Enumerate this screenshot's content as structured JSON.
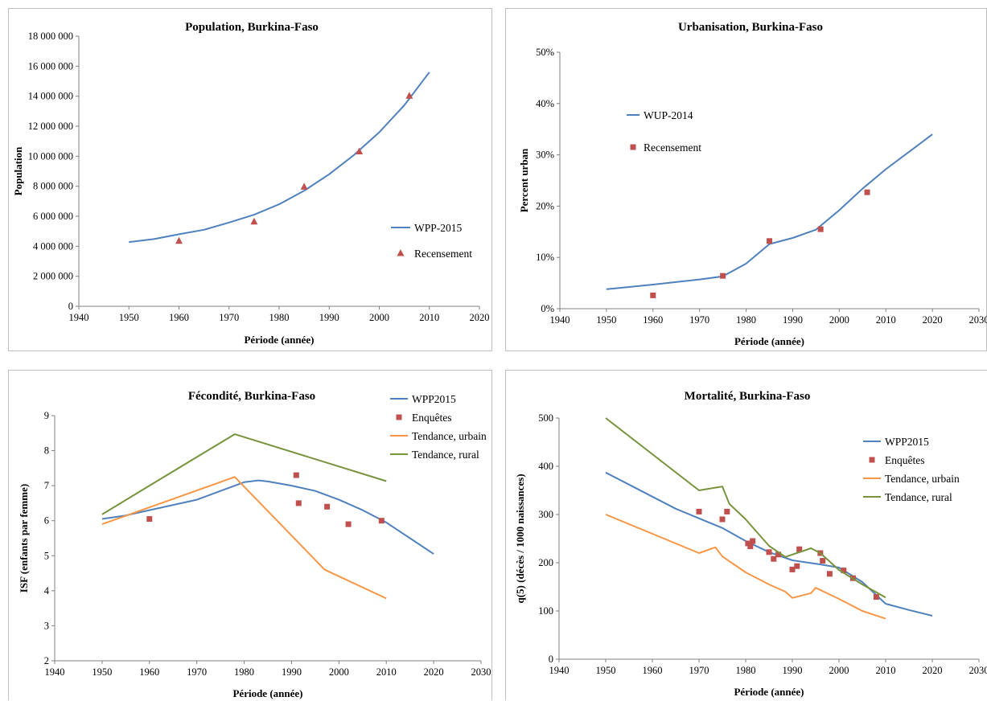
{
  "colors": {
    "wpp": "#4f81bd",
    "obs": "#c0504d",
    "urban": "#f79646",
    "rural": "#77933c",
    "axis": "#808080"
  },
  "chart_data": [
    {
      "type": "line",
      "title": "Population, Burkina-Faso",
      "xlabel": "Période (année)",
      "ylabel": "Population",
      "xlim": [
        1940,
        2020
      ],
      "ylim": [
        0,
        18000000
      ],
      "xticks": [
        1940,
        1950,
        1960,
        1970,
        1980,
        1990,
        2000,
        2010,
        2020
      ],
      "xtick_labels": [
        "1940",
        "1950",
        "1960",
        "1970",
        "1980",
        "1990",
        "2000",
        "2010",
        "2020"
      ],
      "yticks": [
        0,
        2000000,
        4000000,
        6000000,
        8000000,
        10000000,
        12000000,
        14000000,
        16000000,
        18000000
      ],
      "ytick_labels": [
        "0",
        "2 000 000",
        "4 000 000",
        "6 000 000",
        "8 000 000",
        "10 000 000",
        "12 000 000",
        "14 000 000",
        "16 000 000",
        "18 000 000"
      ],
      "legend_position": "lower-right",
      "series": [
        {
          "name": "WPP-2015",
          "style": "line",
          "color_key": "wpp",
          "x": [
            1950,
            1955,
            1960,
            1965,
            1970,
            1975,
            1980,
            1985,
            1990,
            1995,
            2000,
            2005,
            2010
          ],
          "y": [
            4280000,
            4480000,
            4800000,
            5100000,
            5580000,
            6100000,
            6800000,
            7700000,
            8800000,
            10100000,
            11600000,
            13400000,
            15600000
          ]
        },
        {
          "name": "Recensement",
          "style": "marker",
          "marker": "triangle",
          "color_key": "obs",
          "x": [
            1960,
            1975,
            1985,
            1996,
            2006
          ],
          "y": [
            4350000,
            5640000,
            7960000,
            10310000,
            14020000
          ]
        }
      ]
    },
    {
      "type": "line",
      "title": "Urbanisation, Burkina-Faso",
      "xlabel": "Période (année)",
      "ylabel": "Percent urban",
      "xlim": [
        1940,
        2030
      ],
      "ylim": [
        0,
        50
      ],
      "xticks": [
        1940,
        1950,
        1960,
        1970,
        1980,
        1990,
        2000,
        2010,
        2020,
        2030
      ],
      "xtick_labels": [
        "1940",
        "1950",
        "1960",
        "1970",
        "1980",
        "1990",
        "2000",
        "2010",
        "2020",
        "2030"
      ],
      "yticks": [
        0,
        10,
        20,
        30,
        40,
        50
      ],
      "ytick_labels": [
        "0%",
        "10%",
        "20%",
        "30%",
        "40%",
        "50%"
      ],
      "legend_position": "top-left",
      "series": [
        {
          "name": "WUP-2014",
          "style": "line",
          "color_key": "wpp",
          "x": [
            1950,
            1960,
            1970,
            1975,
            1980,
            1985,
            1990,
            1995,
            2000,
            2005,
            2010,
            2015,
            2020
          ],
          "y": [
            3.8,
            4.7,
            5.7,
            6.3,
            8.8,
            12.6,
            13.8,
            15.4,
            19.2,
            23.4,
            27.2,
            30.6,
            34.0
          ]
        },
        {
          "name": "Recensement",
          "style": "marker",
          "marker": "square",
          "color_key": "obs",
          "x": [
            1960,
            1975,
            1985,
            1996,
            2006
          ],
          "y": [
            2.6,
            6.4,
            13.2,
            15.5,
            22.7
          ]
        }
      ]
    },
    {
      "type": "line",
      "title": "Fécondité, Burkina-Faso",
      "xlabel": "Période (année)",
      "ylabel": "ISF (enfants par femme)",
      "xlim": [
        1940,
        2030
      ],
      "ylim": [
        2,
        9
      ],
      "xticks": [
        1940,
        1950,
        1960,
        1970,
        1980,
        1990,
        2000,
        2010,
        2020,
        2030
      ],
      "xtick_labels": [
        "1940",
        "1950",
        "1960",
        "1970",
        "1980",
        "1990",
        "2000",
        "2010",
        "2020",
        "2030"
      ],
      "yticks": [
        2,
        3,
        4,
        5,
        6,
        7,
        8,
        9
      ],
      "ytick_labels": [
        "2",
        "3",
        "4",
        "5",
        "6",
        "7",
        "8",
        "9"
      ],
      "legend_position": "top-right",
      "series": [
        {
          "name": "WPP2015",
          "style": "line",
          "color_key": "wpp",
          "x": [
            1950,
            1955,
            1960,
            1965,
            1970,
            1975,
            1980,
            1983,
            1985,
            1990,
            1995,
            2000,
            2005,
            2010,
            2015,
            2020
          ],
          "y": [
            6.05,
            6.15,
            6.3,
            6.45,
            6.6,
            6.85,
            7.1,
            7.15,
            7.12,
            7.0,
            6.85,
            6.6,
            6.3,
            5.95,
            5.5,
            5.05
          ]
        },
        {
          "name": "Enquêtes",
          "style": "marker",
          "marker": "square",
          "color_key": "obs",
          "x": [
            1960,
            1991,
            1991.5,
            1997.5,
            2002,
            2009
          ],
          "y": [
            6.05,
            7.3,
            6.5,
            6.4,
            5.9,
            6.0
          ]
        },
        {
          "name": "Tendance, urbain",
          "style": "line",
          "color_key": "urban",
          "x": [
            1950,
            1978,
            1997,
            2010
          ],
          "y": [
            5.9,
            7.25,
            4.6,
            3.78
          ]
        },
        {
          "name": "Tendance, rural",
          "style": "line",
          "color_key": "rural",
          "x": [
            1950,
            1960,
            1978,
            2010
          ],
          "y": [
            6.18,
            7.0,
            8.47,
            7.13
          ]
        }
      ]
    },
    {
      "type": "line",
      "title": "Mortalité, Burkina-Faso",
      "xlabel": "Période (année)",
      "ylabel": "q(5) (décès / 1000 naissances)",
      "xlim": [
        1940,
        2030
      ],
      "ylim": [
        0,
        500
      ],
      "xticks": [
        1940,
        1950,
        1960,
        1970,
        1980,
        1990,
        2000,
        2010,
        2020,
        2030
      ],
      "xtick_labels": [
        "1940",
        "1950",
        "1960",
        "1970",
        "1980",
        "1990",
        "2000",
        "2010",
        "2020",
        "2030"
      ],
      "yticks": [
        0,
        100,
        200,
        300,
        400,
        500
      ],
      "ytick_labels": [
        "0",
        "100",
        "200",
        "300",
        "400",
        "500"
      ],
      "legend_position": "top-right",
      "series": [
        {
          "name": "WPP2015",
          "style": "line",
          "color_key": "wpp",
          "x": [
            1950,
            1955,
            1960,
            1965,
            1970,
            1975,
            1980,
            1985,
            1990,
            1995,
            2000,
            2005,
            2010,
            2015,
            2020
          ],
          "y": [
            387,
            362,
            337,
            312,
            292,
            272,
            245,
            222,
            205,
            198,
            190,
            160,
            115,
            102,
            90
          ]
        },
        {
          "name": "Enquêtes",
          "style": "marker",
          "marker": "square",
          "color_key": "obs",
          "x": [
            1970,
            1975,
            1976,
            1980.5,
            1981,
            1981.5,
            1985,
            1986,
            1987,
            1990,
            1991,
            1991.5,
            1996,
            1996.5,
            1998,
            2001,
            2003,
            2008
          ],
          "y": [
            306,
            290,
            306,
            240,
            234,
            245,
            222,
            208,
            217,
            186,
            193,
            228,
            220,
            204,
            177,
            184,
            168,
            129
          ]
        },
        {
          "name": "Tendance, urbain",
          "style": "line",
          "color_key": "urban",
          "x": [
            1950,
            1970,
            1973.5,
            1975,
            1980,
            1985,
            1988.5,
            1990,
            1994,
            1995,
            2000,
            2005,
            2010
          ],
          "y": [
            300,
            220,
            232,
            213,
            180,
            155,
            140,
            127,
            137,
            148,
            125,
            100,
            84
          ]
        },
        {
          "name": "Tendance, rural",
          "style": "line",
          "color_key": "rural",
          "x": [
            1950,
            1970,
            1975,
            1976.5,
            1980,
            1985,
            1988.5,
            1994,
            1996,
            2000,
            2005,
            2010
          ],
          "y": [
            500,
            350,
            358,
            322,
            290,
            235,
            212,
            230,
            220,
            185,
            155,
            128
          ]
        }
      ]
    }
  ]
}
